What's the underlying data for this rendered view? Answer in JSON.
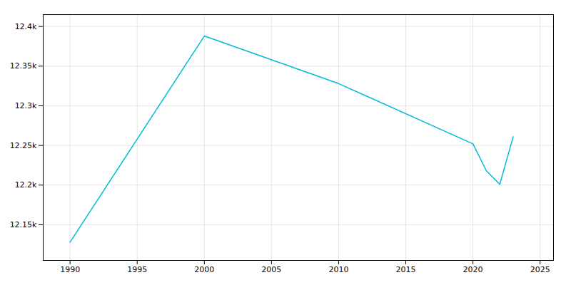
{
  "chart_data": {
    "type": "line",
    "x": [
      1990,
      2000,
      2010,
      2020,
      2021,
      2022,
      2023
    ],
    "values": [
      12128,
      12388,
      12328,
      12252,
      12218,
      12201,
      12261
    ],
    "color": "#00bcd4",
    "xlim": [
      1988,
      2026
    ],
    "ylim": [
      12105,
      12415
    ],
    "xticks": [
      1990,
      1995,
      2000,
      2005,
      2010,
      2015,
      2020,
      2025
    ],
    "yticks": [
      {
        "value": 12150,
        "label": "12.15k"
      },
      {
        "value": 12200,
        "label": "12.2k"
      },
      {
        "value": 12250,
        "label": "12.25k"
      },
      {
        "value": 12300,
        "label": "12.3k"
      },
      {
        "value": 12350,
        "label": "12.35k"
      },
      {
        "value": 12400,
        "label": "12.4k"
      }
    ],
    "grid": true
  }
}
